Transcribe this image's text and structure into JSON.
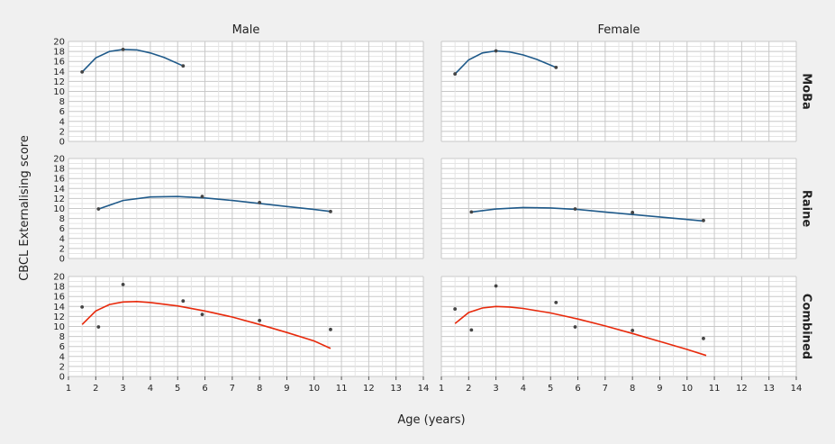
{
  "chart_data": {
    "type": "line",
    "title": "",
    "xlabel": "Age (years)",
    "ylabel": "CBCL Externalising score",
    "xlim": [
      1,
      14
    ],
    "ylim": [
      0,
      20
    ],
    "x_ticks": [
      "1",
      "2",
      "3",
      "4",
      "5",
      "6",
      "7",
      "8",
      "9",
      "10",
      "11",
      "12",
      "13",
      "14"
    ],
    "y_ticks": [
      "0",
      "2",
      "4",
      "6",
      "8",
      "10",
      "12",
      "14",
      "16",
      "18",
      "20"
    ],
    "grid": true,
    "columns": [
      "Male",
      "Female"
    ],
    "rows": [
      "MoBa",
      "Raine",
      "Combined"
    ],
    "colors": {
      "cohort_line": "#1f5a8a",
      "combined_line": "#e8290b",
      "points": "#444444"
    },
    "panels": [
      {
        "row": "MoBa",
        "column": "Male",
        "points": [
          [
            1.5,
            13.9
          ],
          [
            3.0,
            18.4
          ],
          [
            5.2,
            15.1
          ]
        ],
        "curve": [
          [
            1.5,
            13.9
          ],
          [
            2.0,
            16.7
          ],
          [
            2.5,
            18.0
          ],
          [
            3.0,
            18.4
          ],
          [
            3.5,
            18.3
          ],
          [
            4.0,
            17.7
          ],
          [
            4.5,
            16.8
          ],
          [
            5.2,
            15.1
          ]
        ]
      },
      {
        "row": "MoBa",
        "column": "Female",
        "points": [
          [
            1.5,
            13.5
          ],
          [
            3.0,
            18.1
          ],
          [
            5.2,
            14.8
          ]
        ],
        "curve": [
          [
            1.5,
            13.5
          ],
          [
            2.0,
            16.3
          ],
          [
            2.5,
            17.7
          ],
          [
            3.0,
            18.1
          ],
          [
            3.5,
            17.9
          ],
          [
            4.0,
            17.3
          ],
          [
            4.5,
            16.4
          ],
          [
            5.2,
            14.8
          ]
        ]
      },
      {
        "row": "Raine",
        "column": "Male",
        "points": [
          [
            2.1,
            9.9
          ],
          [
            5.9,
            12.4
          ],
          [
            8.0,
            11.2
          ],
          [
            10.6,
            9.4
          ]
        ],
        "curve": [
          [
            2.1,
            9.9
          ],
          [
            3.0,
            11.6
          ],
          [
            4.0,
            12.3
          ],
          [
            5.0,
            12.4
          ],
          [
            6.0,
            12.1
          ],
          [
            7.0,
            11.6
          ],
          [
            8.0,
            11.0
          ],
          [
            9.0,
            10.4
          ],
          [
            10.0,
            9.8
          ],
          [
            10.6,
            9.4
          ]
        ]
      },
      {
        "row": "Raine",
        "column": "Female",
        "points": [
          [
            2.1,
            9.3
          ],
          [
            5.9,
            9.9
          ],
          [
            8.0,
            9.2
          ],
          [
            10.6,
            7.6
          ]
        ],
        "curve": [
          [
            2.1,
            9.3
          ],
          [
            3.0,
            9.9
          ],
          [
            4.0,
            10.2
          ],
          [
            5.0,
            10.1
          ],
          [
            6.0,
            9.8
          ],
          [
            7.0,
            9.3
          ],
          [
            8.0,
            8.8
          ],
          [
            9.0,
            8.3
          ],
          [
            10.0,
            7.8
          ],
          [
            10.6,
            7.5
          ]
        ]
      },
      {
        "row": "Combined",
        "column": "Male",
        "points": [
          [
            1.5,
            13.9
          ],
          [
            2.1,
            9.9
          ],
          [
            3.0,
            18.4
          ],
          [
            5.2,
            15.1
          ],
          [
            5.9,
            12.4
          ],
          [
            8.0,
            11.2
          ],
          [
            10.6,
            9.4
          ]
        ],
        "curve": [
          [
            1.5,
            10.4
          ],
          [
            2.0,
            13.1
          ],
          [
            2.5,
            14.4
          ],
          [
            3.0,
            14.9
          ],
          [
            3.5,
            15.0
          ],
          [
            4.0,
            14.8
          ],
          [
            5.0,
            14.1
          ],
          [
            6.0,
            13.1
          ],
          [
            7.0,
            11.9
          ],
          [
            8.0,
            10.4
          ],
          [
            9.0,
            8.8
          ],
          [
            10.0,
            7.1
          ],
          [
            10.6,
            5.6
          ]
        ]
      },
      {
        "row": "Combined",
        "column": "Female",
        "points": [
          [
            1.5,
            13.5
          ],
          [
            2.1,
            9.3
          ],
          [
            3.0,
            18.1
          ],
          [
            5.2,
            14.8
          ],
          [
            5.9,
            9.9
          ],
          [
            8.0,
            9.2
          ],
          [
            10.6,
            7.6
          ]
        ],
        "curve": [
          [
            1.5,
            10.6
          ],
          [
            2.0,
            12.8
          ],
          [
            2.5,
            13.7
          ],
          [
            3.0,
            14.0
          ],
          [
            3.5,
            13.9
          ],
          [
            4.0,
            13.6
          ],
          [
            5.0,
            12.7
          ],
          [
            6.0,
            11.5
          ],
          [
            7.0,
            10.1
          ],
          [
            8.0,
            8.6
          ],
          [
            9.0,
            7.0
          ],
          [
            10.0,
            5.4
          ],
          [
            10.7,
            4.2
          ]
        ]
      }
    ]
  }
}
